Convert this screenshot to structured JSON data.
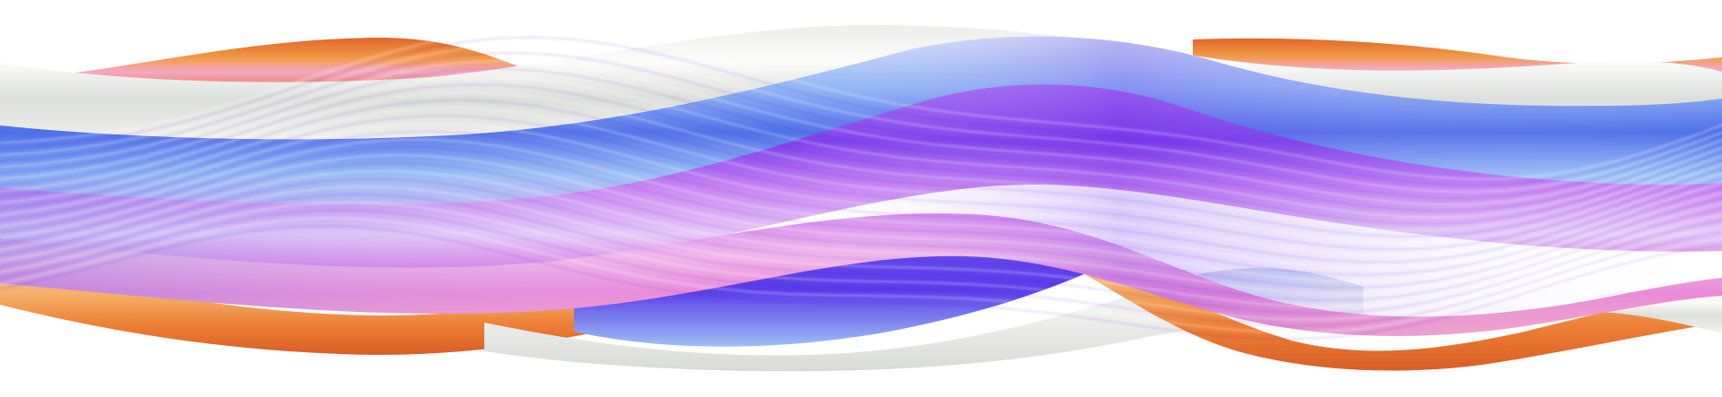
{
  "scene": {
    "background": "#ffffff",
    "subject": "abstract-wave-ribbons",
    "palette": {
      "orange_dark": "#e0662a",
      "orange": "#f08a3c",
      "orange_light": "#f6b26b",
      "pink": "#f2a2d6",
      "magenta": "#c86bf0",
      "violet": "#8a3cf0",
      "indigo": "#5a3ce8",
      "blue": "#5b7df2",
      "sky": "#9ec3f7",
      "lavender": "#e4c8f6",
      "white": "#f6f6f4",
      "grey": "#d6d8d4"
    }
  }
}
